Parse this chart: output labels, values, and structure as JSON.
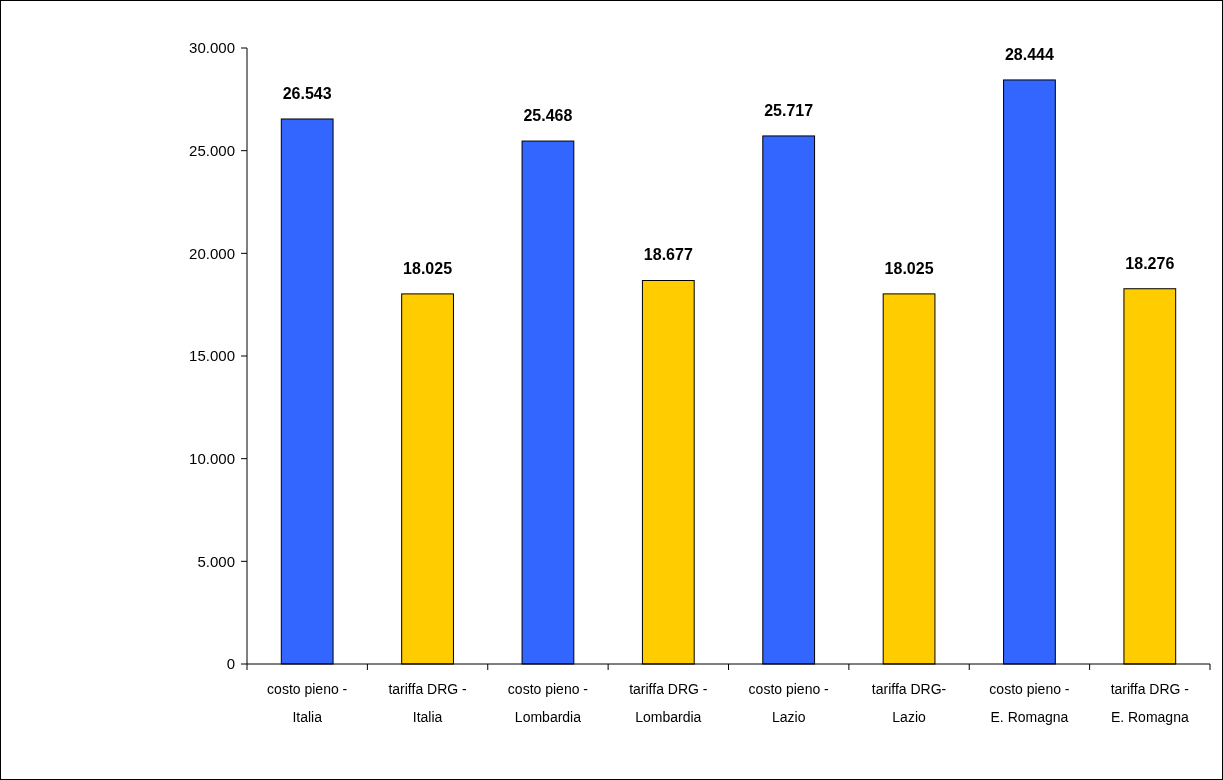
{
  "chart_data": {
    "type": "bar",
    "categories": [
      "costo pieno - Italia",
      "tariffa DRG - Italia",
      "costo pieno - Lombardia",
      "tariffa DRG - Lombardia",
      "costo pieno - Lazio",
      "tariffa DRG- Lazio",
      "costo pieno - E. Romagna",
      "tariffa DRG - E. Romagna"
    ],
    "values": [
      26543,
      18025,
      25468,
      18677,
      25717,
      18025,
      28444,
      18276
    ],
    "colors": [
      "#3366ff",
      "#ffcc00",
      "#3366ff",
      "#ffcc00",
      "#3366ff",
      "#ffcc00",
      "#3366ff",
      "#ffcc00"
    ],
    "value_labels": [
      "26.543",
      "18.025",
      "25.468",
      "18.677",
      "25.717",
      "18.025",
      "28.444",
      "18.276"
    ],
    "ylim": [
      0,
      30000
    ],
    "yticks": [
      {
        "value": 0,
        "label": "0"
      },
      {
        "value": 5000,
        "label": "5.000"
      },
      {
        "value": 10000,
        "label": "10.000"
      },
      {
        "value": 15000,
        "label": "15.000"
      },
      {
        "value": 20000,
        "label": "20.000"
      },
      {
        "value": 25000,
        "label": "25.000"
      },
      {
        "value": 30000,
        "label": "30.000"
      }
    ],
    "grid": false
  }
}
